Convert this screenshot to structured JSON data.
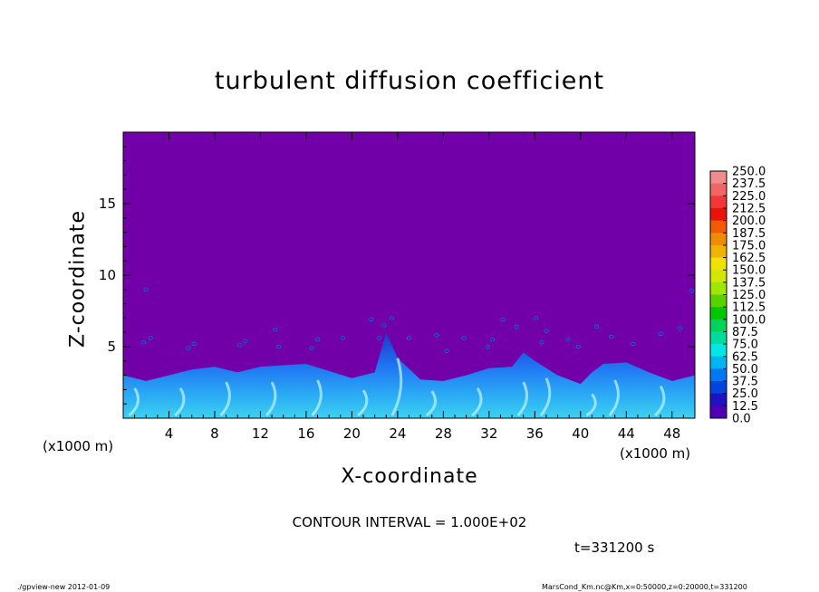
{
  "chart_data": {
    "type": "heatmap",
    "title": "turbulent diffusion coefficient",
    "xlabel": "X-coordinate",
    "ylabel": "Z-coordinate",
    "x_unit_label": "(×1000 m)",
    "x_ticks": [
      4,
      8,
      12,
      16,
      20,
      24,
      28,
      32,
      36,
      40,
      44,
      48
    ],
    "y_ticks": [
      5,
      10,
      15
    ],
    "xlim": [
      0,
      50
    ],
    "ylim": [
      0,
      20
    ],
    "background_color": "#7200a8",
    "colorbar": {
      "labels": [
        "250.0",
        "237.5",
        "225.0",
        "212.5",
        "200.0",
        "187.5",
        "175.0",
        "162.5",
        "150.0",
        "137.5",
        "125.0",
        "112.5",
        "100.0",
        "87.5",
        "75.0",
        "62.5",
        "50.0",
        "37.5",
        "25.0",
        "12.5",
        "0.0"
      ],
      "colors": [
        "#f08c8c",
        "#f06666",
        "#f03838",
        "#e8140a",
        "#f05a00",
        "#f08c00",
        "#f0b400",
        "#f0e100",
        "#d2e600",
        "#a0e600",
        "#5ad200",
        "#00c800",
        "#00d25a",
        "#00dca0",
        "#00e6e6",
        "#00b4f0",
        "#0078f0",
        "#0046dc",
        "#1e14be",
        "#5000b4"
      ]
    },
    "turbulent_layer": {
      "description_values": "diffusion coefficient up to ~75 in a near-surface turbulent layer",
      "layer_top_profile_km": [
        [
          0,
          3.0
        ],
        [
          2,
          2.6
        ],
        [
          4,
          3.0
        ],
        [
          6,
          3.4
        ],
        [
          8,
          3.6
        ],
        [
          10,
          3.2
        ],
        [
          12,
          3.6
        ],
        [
          14,
          3.7
        ],
        [
          16,
          3.8
        ],
        [
          18,
          3.3
        ],
        [
          20,
          2.8
        ],
        [
          22,
          3.2
        ],
        [
          23,
          6.0
        ],
        [
          24,
          4.2
        ],
        [
          26,
          2.7
        ],
        [
          28,
          2.6
        ],
        [
          30,
          3.0
        ],
        [
          32,
          3.5
        ],
        [
          34,
          3.6
        ],
        [
          35,
          4.6
        ],
        [
          36,
          4.0
        ],
        [
          38,
          3.0
        ],
        [
          40,
          2.4
        ],
        [
          41,
          3.2
        ],
        [
          42,
          3.8
        ],
        [
          44,
          3.9
        ],
        [
          46,
          3.2
        ],
        [
          48,
          2.6
        ],
        [
          50,
          3.0
        ]
      ],
      "scattered_eddies_km": [
        [
          1.8,
          5.3
        ],
        [
          2.4,
          5.6
        ],
        [
          2.0,
          9.0
        ],
        [
          5.7,
          4.9
        ],
        [
          6.2,
          5.2
        ],
        [
          10.2,
          5.1
        ],
        [
          10.7,
          5.4
        ],
        [
          13.3,
          6.2
        ],
        [
          13.6,
          5.0
        ],
        [
          16.5,
          4.9
        ],
        [
          17.0,
          5.5
        ],
        [
          19.2,
          5.6
        ],
        [
          21.7,
          6.9
        ],
        [
          22.4,
          5.6
        ],
        [
          22.8,
          6.5
        ],
        [
          23.5,
          7.0
        ],
        [
          25.0,
          5.6
        ],
        [
          27.4,
          5.8
        ],
        [
          28.3,
          4.7
        ],
        [
          29.8,
          5.6
        ],
        [
          31.9,
          5.0
        ],
        [
          32.3,
          5.5
        ],
        [
          34.4,
          6.4
        ],
        [
          36.6,
          5.3
        ],
        [
          37.0,
          6.1
        ],
        [
          38.9,
          5.5
        ],
        [
          39.8,
          5.0
        ],
        [
          41.4,
          6.4
        ],
        [
          42.7,
          5.7
        ],
        [
          44.6,
          5.2
        ],
        [
          47.0,
          5.9
        ],
        [
          48.7,
          6.3
        ],
        [
          49.7,
          8.9
        ],
        [
          33.2,
          6.9
        ],
        [
          36.1,
          7.0
        ]
      ]
    }
  },
  "labels": {
    "title": "turbulent diffusion coefficient",
    "xlabel": "X-coordinate",
    "ylabel": "Z-coordinate",
    "x_unit_left": "(x1000 m)",
    "x_unit_right": "(x1000 m)",
    "contour_interval": "CONTOUR INTERVAL = 1.000E+02",
    "time": "t=331200 s",
    "footer_left": "./gpview-new   2012-01-09",
    "footer_right": "MarsCond_Km.nc@Km,x=0:50000,z=0:20000,t=331200"
  }
}
